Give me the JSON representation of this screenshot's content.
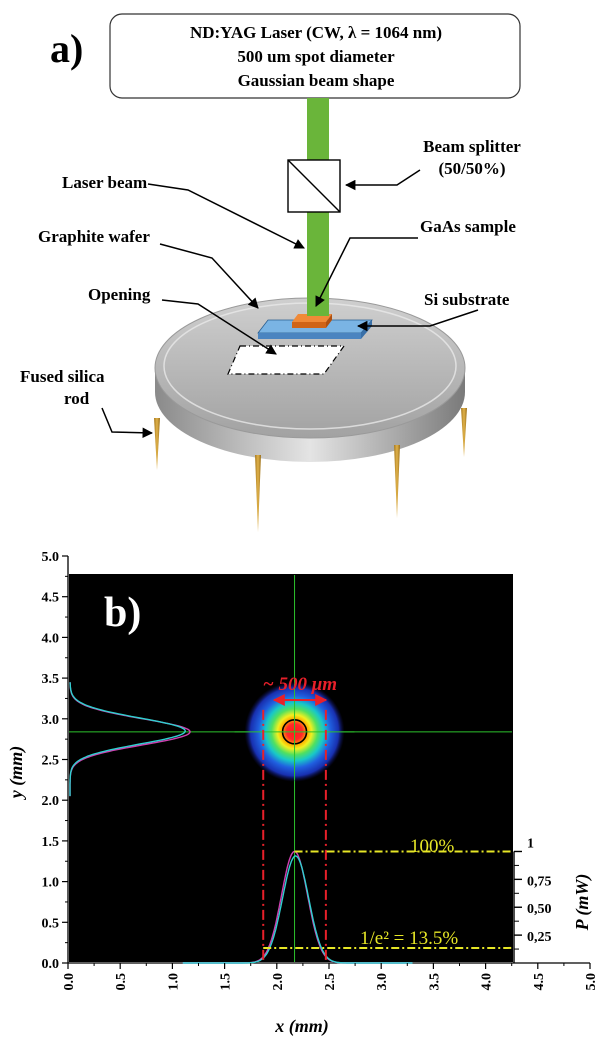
{
  "panel_a": {
    "label": "a)",
    "laser_box": {
      "line1": "ND:YAG Laser (CW, λ = 1064 nm)",
      "line2": "500 um spot diameter",
      "line3": "Gaussian beam shape"
    },
    "labels": {
      "beam_splitter_1": "Beam splitter",
      "beam_splitter_2": "(50/50%)",
      "laser_beam": "Laser beam",
      "gaas_sample": "GaAs sample",
      "graphite_wafer": "Graphite wafer",
      "opening": "Opening",
      "si_substrate": "Si substrate",
      "fused_silica_1": "Fused silica",
      "fused_silica_2": "rod"
    },
    "colors": {
      "beam": "#6ab53a",
      "gaas": "#e07828",
      "si": "#5b9bd5",
      "wafer": "#b4b4b4",
      "rod": "#c8962c"
    }
  },
  "panel_b": {
    "label": "b)",
    "spot_label": "~ 500 μm",
    "pct_100": "100%",
    "pct_e2": "1/e² = 13.5%",
    "colors": {
      "background": "#000000",
      "crosshair": "#2cc22c",
      "dashed_red": "#e8202a",
      "yellow": "#e6e626",
      "profile_cyan": "#2fd0d0",
      "profile_magenta": "#d040b0"
    }
  },
  "chart_data": {
    "type": "heatmap",
    "xlabel": "x (mm)",
    "ylabel": "y (mm)",
    "xlim": [
      0.0,
      5.0
    ],
    "ylim": [
      0.0,
      5.0
    ],
    "x_ticks": [
      "0.0",
      "0.5",
      "1.0",
      "1.5",
      "2.0",
      "2.5",
      "3.0",
      "3.5",
      "4.0",
      "4.5",
      "5.0"
    ],
    "y_ticks": [
      "0.0",
      "0.5",
      "1.0",
      "1.5",
      "2.0",
      "2.5",
      "3.0",
      "3.5",
      "4.0",
      "4.5",
      "5.0"
    ],
    "beam_center": {
      "x": 2.17,
      "y": 2.84
    },
    "spot_diameter_um": 500,
    "dashed_markers_x": [
      1.87,
      2.47
    ],
    "power_axis": {
      "label": "P (mW)",
      "ticks": [
        "1",
        "0,75",
        "0,50",
        "0,25"
      ],
      "values": [
        1.0,
        0.75,
        0.5,
        0.25
      ]
    },
    "profiles": [
      {
        "axis": "x",
        "center": 2.17,
        "peak_power_mW": 1.0
      },
      {
        "axis": "y",
        "center": 2.84,
        "peak_power_mW": 1.0
      }
    ]
  }
}
